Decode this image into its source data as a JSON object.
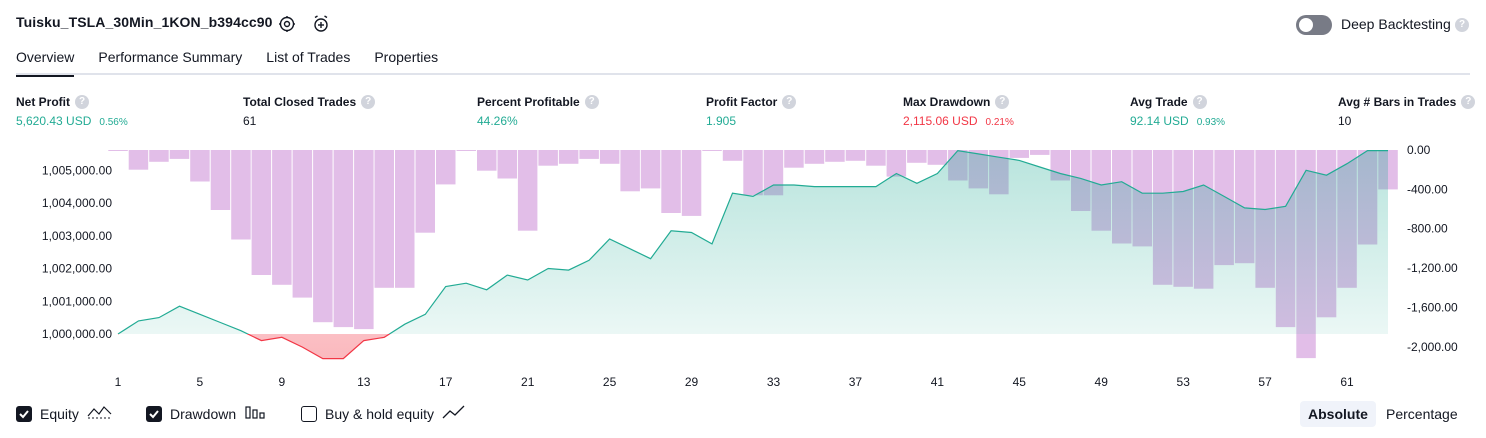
{
  "header": {
    "title": "Tuisku_TSLA_30Min_1KON_b394cc90",
    "deep_backtesting_label": "Deep Backtesting",
    "help_glyph": "?"
  },
  "tabs": [
    {
      "label": "Overview",
      "active": true
    },
    {
      "label": "Performance Summary",
      "active": false
    },
    {
      "label": "List of Trades",
      "active": false
    },
    {
      "label": "Properties",
      "active": false
    }
  ],
  "metrics": [
    {
      "label": "Net Profit",
      "value": "5,620.43 USD",
      "pct": "0.56%",
      "color": "#22ab94"
    },
    {
      "label": "Total Closed Trades",
      "value": "61",
      "pct": "",
      "color": "#131722"
    },
    {
      "label": "Percent Profitable",
      "value": "44.26%",
      "pct": "",
      "color": "#22ab94"
    },
    {
      "label": "Profit Factor",
      "value": "1.905",
      "pct": "",
      "color": "#22ab94"
    },
    {
      "label": "Max Drawdown",
      "value": "2,115.06 USD",
      "pct": "0.21%",
      "color": "#f23645"
    },
    {
      "label": "Avg Trade",
      "value": "92.14 USD",
      "pct": "0.93%",
      "color": "#22ab94"
    },
    {
      "label": "Avg # Bars in Trades",
      "value": "10",
      "pct": "",
      "color": "#131722"
    }
  ],
  "legend": {
    "equity": {
      "label": "Equity",
      "checked": true
    },
    "drawdown": {
      "label": "Drawdown",
      "checked": true
    },
    "buy_hold": {
      "label": "Buy & hold equity",
      "checked": false
    }
  },
  "view_toggle": {
    "absolute": "Absolute",
    "percentage": "Percentage",
    "selected": "Absolute"
  },
  "colors": {
    "equity_line": "#22ab94",
    "equity_negative": "#f23645",
    "drawdown_bar": "#ce93d8",
    "accent": "#131722"
  },
  "chart_data": {
    "type": "area",
    "x_tick_labels": [
      "1",
      "5",
      "9",
      "13",
      "17",
      "21",
      "25",
      "29",
      "33",
      "37",
      "41",
      "45",
      "49",
      "53",
      "57",
      "61"
    ],
    "left_axis": {
      "ticks": [
        "1,005,000.00",
        "1,004,000.00",
        "1,003,000.00",
        "1,002,000.00",
        "1,001,000.00",
        "1,000,000.00"
      ],
      "range": [
        999000,
        1005600
      ]
    },
    "right_axis": {
      "ticks": [
        "0.00",
        "-400.00",
        "-800.00",
        "-1,200.00",
        "-1,600.00",
        "-2,000.00"
      ],
      "range": [
        -2120,
        0
      ]
    },
    "series": [
      {
        "name": "Equity",
        "type": "area",
        "x": [
          1,
          2,
          3,
          4,
          5,
          6,
          7,
          8,
          9,
          10,
          11,
          12,
          13,
          14,
          15,
          16,
          17,
          18,
          19,
          20,
          21,
          22,
          23,
          24,
          25,
          26,
          27,
          28,
          29,
          30,
          31,
          32,
          33,
          34,
          35,
          36,
          37,
          38,
          39,
          40,
          41,
          42,
          43,
          44,
          45,
          46,
          47,
          48,
          49,
          50,
          51,
          52,
          53,
          54,
          55,
          56,
          57,
          58,
          59,
          60,
          61,
          62,
          63
        ],
        "values": [
          1000000,
          1000400,
          1000500,
          1000850,
          1000600,
          1000350,
          1000100,
          999800,
          999900,
          999600,
          999250,
          999250,
          999800,
          999900,
          1000300,
          1000600,
          1001450,
          1001550,
          1001350,
          1001800,
          1001650,
          1002000,
          1001950,
          1002250,
          1002900,
          1002600,
          1002300,
          1003150,
          1003100,
          1002750,
          1004300,
          1004200,
          1004550,
          1004550,
          1004500,
          1004500,
          1004500,
          1004500,
          1004900,
          1004600,
          1004900,
          1005600,
          1005500,
          1005400,
          1005300,
          1005100,
          1004900,
          1004750,
          1004550,
          1004650,
          1004300,
          1004300,
          1004350,
          1004550,
          1004200,
          1003850,
          1003800,
          1003900,
          1005000,
          1004850,
          1005200,
          1005600,
          1005600
        ]
      },
      {
        "name": "Drawdown",
        "type": "bar",
        "x": [
          1,
          2,
          3,
          4,
          5,
          6,
          7,
          8,
          9,
          10,
          11,
          12,
          13,
          14,
          15,
          16,
          17,
          18,
          19,
          20,
          21,
          22,
          23,
          24,
          25,
          26,
          27,
          28,
          29,
          30,
          31,
          32,
          33,
          34,
          35,
          36,
          37,
          38,
          39,
          40,
          41,
          42,
          43,
          44,
          45,
          46,
          47,
          48,
          49,
          50,
          51,
          52,
          53,
          54,
          55,
          56,
          57,
          58,
          59,
          60,
          61,
          62,
          63
        ],
        "values": [
          0,
          -200,
          -120,
          -90,
          -320,
          -610,
          -910,
          -1270,
          -1370,
          -1500,
          -1750,
          -1800,
          -1820,
          -1400,
          -1400,
          -840,
          -350,
          -10,
          -210,
          -290,
          -820,
          -160,
          -140,
          -90,
          -140,
          -420,
          -390,
          -640,
          -670,
          -10,
          -110,
          -460,
          -460,
          -180,
          -140,
          -120,
          -110,
          -160,
          -270,
          -130,
          -150,
          -310,
          -390,
          -450,
          -80,
          -50,
          -310,
          -620,
          -820,
          -950,
          -980,
          -1370,
          -1390,
          -1410,
          -1170,
          -1150,
          -1400,
          -1800,
          -2115,
          -1700,
          -1400,
          -960,
          -400
        ]
      }
    ]
  }
}
